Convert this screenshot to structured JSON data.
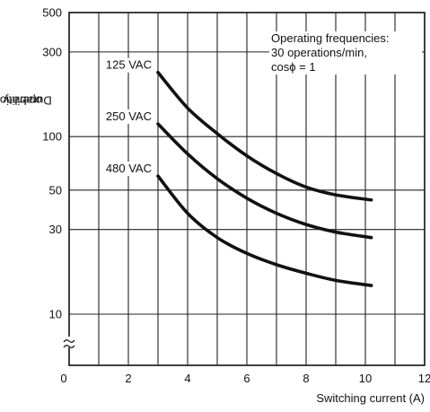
{
  "chart_data": {
    "type": "line",
    "ylabel_main": "Durability (x 10",
    "ylabel_exp": "4",
    "ylabel_tail": " operations)",
    "xlabel": "Switching current (A)",
    "y_scale": "log",
    "xlim": [
      0,
      12
    ],
    "ylim": [
      10,
      500
    ],
    "grid": true,
    "x_ticks": [
      "0",
      "2",
      "4",
      "6",
      "8",
      "10",
      "12"
    ],
    "x_tick_values": [
      0,
      2,
      4,
      6,
      8,
      10,
      12
    ],
    "y_ticks": [
      "500",
      "300",
      "100",
      "50",
      "30",
      "10"
    ],
    "y_tick_values": [
      500,
      300,
      100,
      50,
      30,
      10
    ],
    "annotation": [
      "Operating frequencies:",
      "30 operations/min,",
      "cosϕ = 1"
    ],
    "series": [
      {
        "name": "125 VAC",
        "x": [
          3,
          4,
          5,
          6,
          7,
          8,
          9,
          10.2
        ],
        "y": [
          230,
          145,
          104,
          78,
          62,
          52,
          47,
          44
        ]
      },
      {
        "name": "250 VAC",
        "x": [
          3,
          4,
          5,
          6,
          7,
          8,
          9,
          10.2
        ],
        "y": [
          118,
          80,
          58,
          45,
          37,
          32,
          29,
          27
        ]
      },
      {
        "name": "480 VAC",
        "x": [
          3,
          4,
          5,
          6,
          7,
          8,
          9,
          10.2
        ],
        "y": [
          60,
          37,
          27,
          22,
          19,
          17,
          15.5,
          14.5
        ]
      }
    ]
  }
}
